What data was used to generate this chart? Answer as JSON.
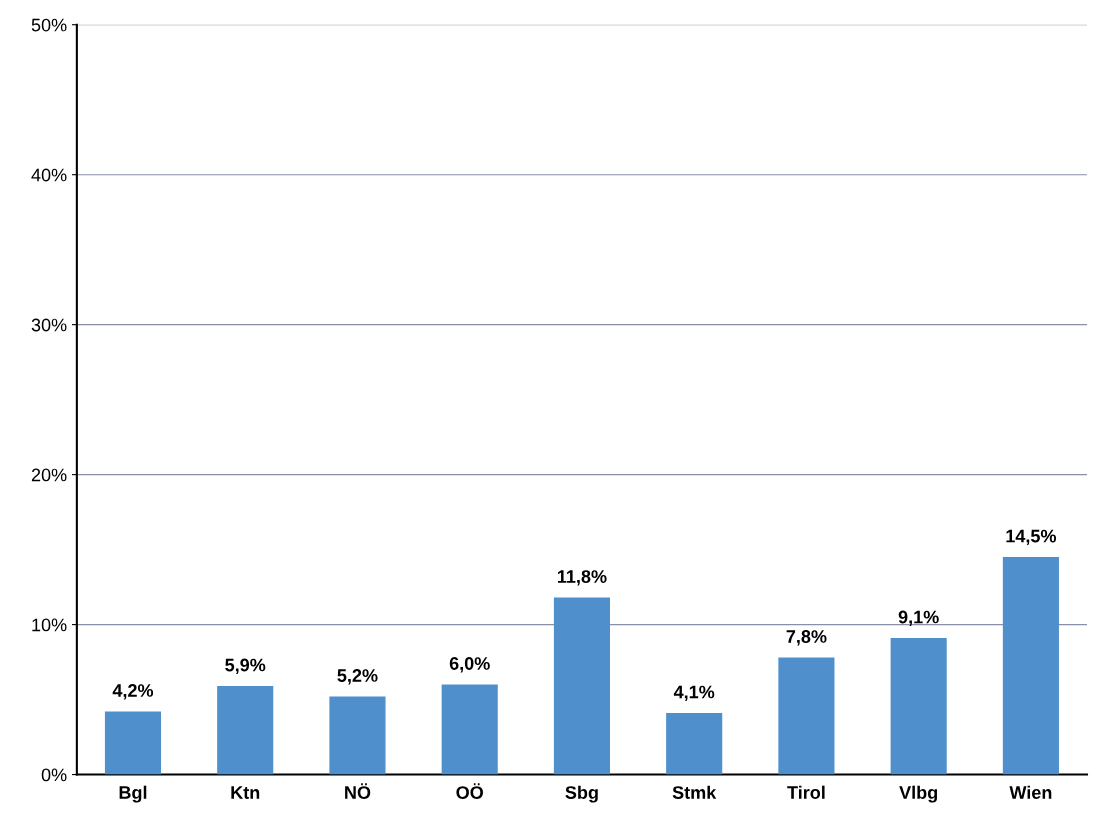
{
  "chart_data": {
    "type": "bar",
    "categories": [
      "Bgl",
      "Ktn",
      "NÖ",
      "OÖ",
      "Sbg",
      "Stmk",
      "Tirol",
      "Vlbg",
      "Wien"
    ],
    "values": [
      4.2,
      5.9,
      5.2,
      6.0,
      11.8,
      4.1,
      7.8,
      9.1,
      14.5
    ],
    "value_labels": [
      "4,2%",
      "5,9%",
      "5,2%",
      "6,0%",
      "11,8%",
      "4,1%",
      "7,8%",
      "9,1%",
      "14,5%"
    ],
    "color": "#4f8fcb",
    "ylim": [
      0,
      50
    ],
    "yticks": [
      {
        "value": 0,
        "label": "0%"
      },
      {
        "value": 10,
        "label": "10%"
      },
      {
        "value": 20,
        "label": "20%"
      },
      {
        "value": 30,
        "label": "30%"
      },
      {
        "value": 40,
        "label": "40%"
      },
      {
        "value": 50,
        "label": "50%"
      }
    ],
    "grid": "y",
    "legend": false
  }
}
